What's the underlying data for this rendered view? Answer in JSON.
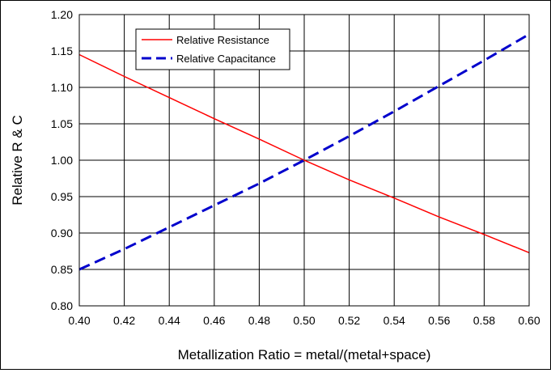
{
  "chart_data": {
    "type": "line",
    "title": "",
    "xlabel": "Metallization Ratio = metal/(metal+space)",
    "ylabel": "Relative R & C",
    "xlim": [
      0.4,
      0.6
    ],
    "ylim": [
      0.8,
      1.2
    ],
    "x_ticks": [
      0.4,
      0.42,
      0.44,
      0.46,
      0.48,
      0.5,
      0.52,
      0.54,
      0.56,
      0.58,
      0.6
    ],
    "x_tick_labels": [
      "0.40",
      "0.42",
      "0.44",
      "0.46",
      "0.48",
      "0.50",
      "0.52",
      "0.54",
      "0.56",
      "0.58",
      "0.60"
    ],
    "y_ticks": [
      0.8,
      0.85,
      0.9,
      0.95,
      1.0,
      1.05,
      1.1,
      1.15,
      1.2
    ],
    "y_tick_labels": [
      "0.80",
      "0.85",
      "0.90",
      "0.95",
      "1.00",
      "1.05",
      "1.10",
      "1.15",
      "1.20"
    ],
    "grid": true,
    "legend_position": "top-left",
    "series": [
      {
        "name": "Relative Resistance",
        "color": "#ff0000",
        "style": "solid",
        "x": [
          0.4,
          0.42,
          0.44,
          0.46,
          0.48,
          0.5,
          0.52,
          0.54,
          0.56,
          0.58,
          0.6
        ],
        "y": [
          1.145,
          1.115,
          1.086,
          1.057,
          1.029,
          1.0,
          0.973,
          0.948,
          0.922,
          0.898,
          0.873
        ]
      },
      {
        "name": "Relative Capacitance",
        "color": "#0000cc",
        "style": "dashed",
        "x": [
          0.4,
          0.42,
          0.44,
          0.46,
          0.48,
          0.5,
          0.52,
          0.54,
          0.56,
          0.58,
          0.6
        ],
        "y": [
          0.85,
          0.878,
          0.908,
          0.938,
          0.968,
          1.0,
          1.033,
          1.067,
          1.102,
          1.137,
          1.173
        ]
      }
    ]
  }
}
